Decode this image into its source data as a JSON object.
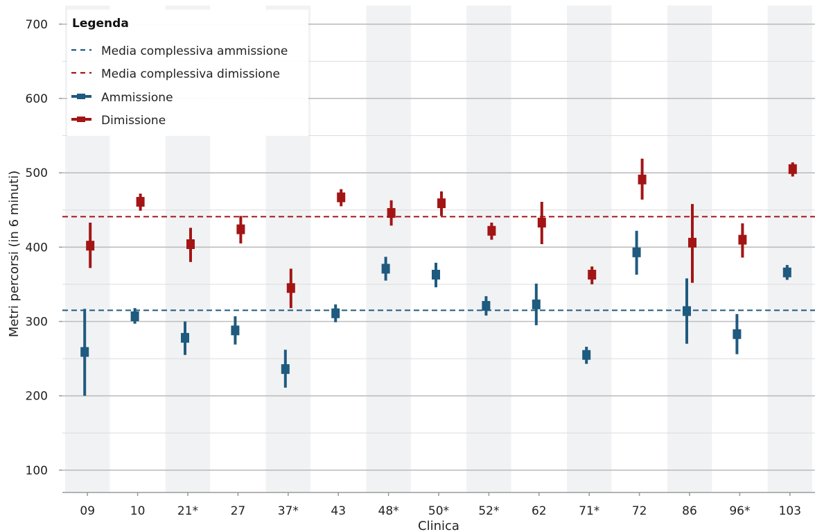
{
  "chart_data": {
    "type": "errorbar",
    "xlabel": "Clinica",
    "ylabel": "Metri percorsi (in 6 minuti)",
    "ylim": [
      70,
      725
    ],
    "yticks": [
      100,
      200,
      300,
      400,
      500,
      600,
      700
    ],
    "grid": true,
    "categories": [
      "09",
      "10",
      "21*",
      "27",
      "37*",
      "43",
      "48*",
      "50*",
      "52*",
      "62",
      "71*",
      "72",
      "86",
      "96*",
      "103"
    ],
    "series": [
      {
        "name": "Ammissione",
        "color": "#1f5a7f",
        "values": [
          259,
          307,
          278,
          288,
          236,
          311,
          371,
          363,
          321,
          323,
          255,
          393,
          314,
          283,
          366
        ],
        "lower": [
          200,
          297,
          255,
          269,
          211,
          299,
          355,
          346,
          308,
          295,
          243,
          363,
          270,
          256,
          356
        ],
        "upper": [
          317,
          318,
          300,
          307,
          262,
          323,
          387,
          379,
          334,
          351,
          266,
          422,
          358,
          310,
          376
        ]
      },
      {
        "name": "Dimissione",
        "color": "#a31515",
        "values": [
          402,
          461,
          404,
          424,
          345,
          467,
          446,
          459,
          422,
          433,
          363,
          491,
          406,
          410,
          505
        ],
        "lower": [
          372,
          449,
          380,
          405,
          318,
          455,
          429,
          442,
          410,
          404,
          350,
          464,
          352,
          386,
          495
        ],
        "upper": [
          433,
          472,
          426,
          442,
          371,
          478,
          463,
          475,
          433,
          461,
          374,
          519,
          458,
          432,
          514
        ]
      }
    ],
    "reference_lines": [
      {
        "name": "Media complessiva ammissione",
        "value": 315,
        "color": "#1f5a7f",
        "style": "dashed"
      },
      {
        "name": "Media complessiva dimissione",
        "value": 441,
        "color": "#a31515",
        "style": "dashed"
      }
    ],
    "legend": {
      "title": "Legenda",
      "position": "top-left",
      "items": [
        "Media complessiva ammissione",
        "Media complessiva dimissione",
        "Ammissione",
        "Dimissione"
      ]
    },
    "band_color": "#f1f2f4",
    "grid_color": "#bdbdbd",
    "minor_grid_color": "#dcdcdc"
  }
}
